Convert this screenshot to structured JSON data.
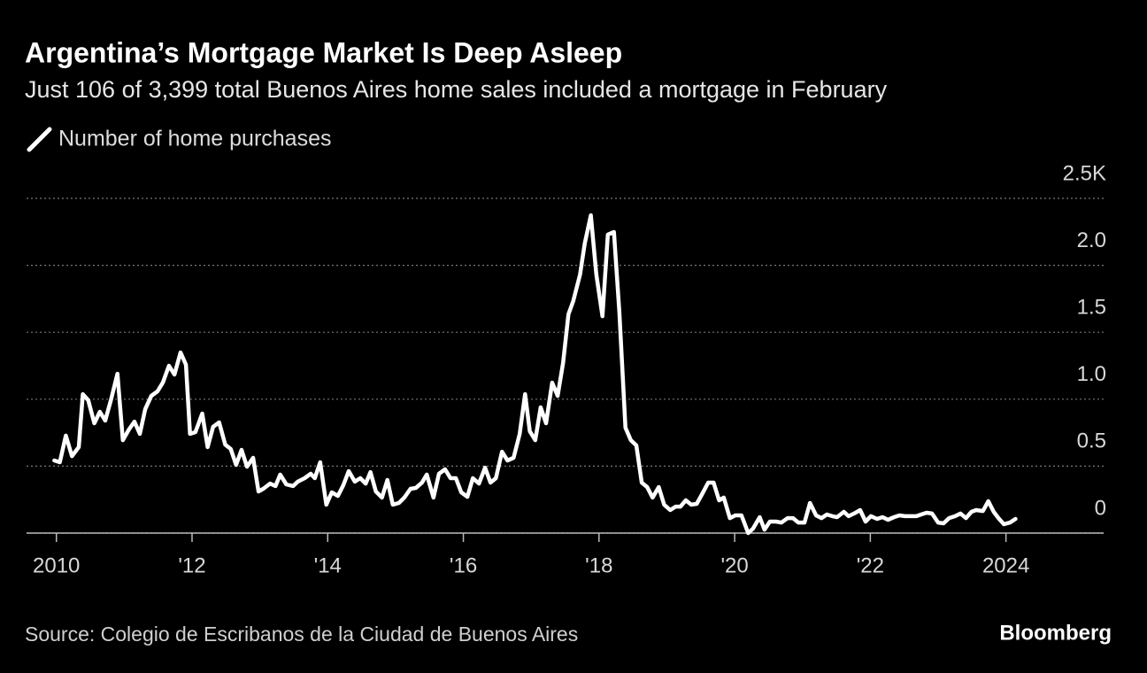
{
  "chart_data": {
    "type": "line",
    "title": "Argentina’s Mortgage Market Is Deep Asleep",
    "subtitle": "Just 106 of 3,399 total Buenos Aires home sales included a mortgage in February",
    "source": "Source: Colegio de Escribanos de la Ciudad de Buenos Aires",
    "brand": "Bloomberg",
    "grid": true,
    "xlim": [
      2009.56,
      2025.44
    ],
    "xticks": [
      2010,
      {
        "value": 2012,
        "label": "'12"
      },
      {
        "value": 2014,
        "label": "'14"
      },
      {
        "value": 2016,
        "label": "'16"
      },
      {
        "value": 2018,
        "label": "'18"
      },
      {
        "value": 2020,
        "label": "'20"
      },
      {
        "value": 2022,
        "label": "'22"
      },
      2024
    ],
    "ylim": [
      0,
      2500
    ],
    "yticks": [
      0,
      {
        "value": 500,
        "label": "0.5"
      },
      {
        "value": 1000,
        "label": "1.0"
      },
      {
        "value": 1500,
        "label": "1.5"
      },
      {
        "value": 2000,
        "label": "2.0"
      },
      {
        "value": 2500,
        "label": "2.5K"
      }
    ],
    "x": [
      2009.97,
      2010.05,
      2010.14,
      2010.23,
      2010.33,
      2010.39,
      2010.47,
      2010.56,
      2010.64,
      2010.72,
      2010.81,
      2010.9,
      2010.98,
      2011.07,
      2011.15,
      2011.23,
      2011.31,
      2011.4,
      2011.49,
      2011.57,
      2011.66,
      2011.74,
      2011.83,
      2011.91,
      2011.97,
      2012.05,
      2012.15,
      2012.23,
      2012.31,
      2012.4,
      2012.49,
      2012.57,
      2012.65,
      2012.73,
      2012.81,
      2012.9,
      2012.98,
      2013.05,
      2013.15,
      2013.23,
      2013.3,
      2013.39,
      2013.49,
      2013.56,
      2013.66,
      2013.75,
      2013.81,
      2013.89,
      2013.98,
      2014.06,
      2014.15,
      2014.23,
      2014.31,
      2014.4,
      2014.48,
      2014.56,
      2014.63,
      2014.71,
      2014.8,
      2014.88,
      2014.96,
      2015.05,
      2015.13,
      2015.22,
      2015.3,
      2015.39,
      2015.46,
      2015.56,
      2015.64,
      2015.73,
      2015.81,
      2015.89,
      2015.97,
      2016.06,
      2016.14,
      2016.23,
      2016.32,
      2016.4,
      2016.48,
      2016.57,
      2016.65,
      2016.74,
      2016.83,
      2016.91,
      2016.98,
      2017.06,
      2017.14,
      2017.22,
      2017.31,
      2017.39,
      2017.47,
      2017.55,
      2017.62,
      2017.72,
      2017.79,
      2017.88,
      2017.96,
      2018.05,
      2018.13,
      2018.22,
      2018.3,
      2018.39,
      2018.47,
      2018.55,
      2018.63,
      2018.71,
      2018.79,
      2018.88,
      2018.96,
      2019.05,
      2019.13,
      2019.2,
      2019.28,
      2019.36,
      2019.44,
      2019.52,
      2019.61,
      2019.69,
      2019.77,
      2019.84,
      2019.93,
      2020.01,
      2020.1,
      2020.2,
      2020.27,
      2020.37,
      2020.44,
      2020.52,
      2020.61,
      2020.69,
      2020.78,
      2020.86,
      2020.94,
      2021.03,
      2021.11,
      2021.2,
      2021.28,
      2021.36,
      2021.44,
      2021.51,
      2021.61,
      2021.68,
      2021.76,
      2021.85,
      2021.93,
      2022.01,
      2022.1,
      2022.18,
      2022.26,
      2022.35,
      2022.43,
      2022.51,
      2022.6,
      2022.68,
      2022.75,
      2022.83,
      2022.91,
      2023.0,
      2023.08,
      2023.16,
      2023.25,
      2023.33,
      2023.41,
      2023.49,
      2023.56,
      2023.66,
      2023.74,
      2023.82,
      2023.89,
      2023.97,
      2024.06,
      2024.14
    ],
    "series": [
      {
        "name": "Number of home purchases",
        "color": "#ffffff",
        "values": [
          542,
          529,
          728,
          575,
          642,
          1038,
          992,
          820,
          906,
          840,
          1005,
          1190,
          694,
          774,
          833,
          741,
          926,
          1025,
          1058,
          1124,
          1250,
          1184,
          1349,
          1257,
          741,
          754,
          893,
          642,
          794,
          827,
          661,
          628,
          509,
          622,
          496,
          562,
          311,
          331,
          370,
          351,
          437,
          364,
          351,
          384,
          410,
          443,
          410,
          529,
          212,
          304,
          278,
          357,
          463,
          384,
          410,
          370,
          456,
          311,
          265,
          397,
          212,
          225,
          265,
          331,
          337,
          377,
          437,
          265,
          443,
          476,
          410,
          410,
          304,
          271,
          410,
          370,
          489,
          377,
          410,
          608,
          542,
          562,
          741,
          1038,
          761,
          694,
          939,
          820,
          1124,
          1025,
          1270,
          1634,
          1733,
          1931,
          2163,
          2374,
          1931,
          1620,
          2229,
          2249,
          1653,
          787,
          694,
          655,
          377,
          344,
          265,
          344,
          212,
          172,
          198,
          198,
          245,
          212,
          218,
          291,
          377,
          377,
          245,
          265,
          112,
          132,
          132,
          0,
          33,
          119,
          26,
          86,
          86,
          79,
          112,
          112,
          79,
          79,
          225,
          132,
          112,
          139,
          126,
          119,
          159,
          126,
          146,
          172,
          86,
          126,
          106,
          119,
          99,
          119,
          132,
          126,
          126,
          126,
          139,
          152,
          146,
          79,
          73,
          112,
          126,
          146,
          112,
          159,
          172,
          165,
          238,
          159,
          112,
          66,
          79,
          106
        ]
      }
    ]
  }
}
